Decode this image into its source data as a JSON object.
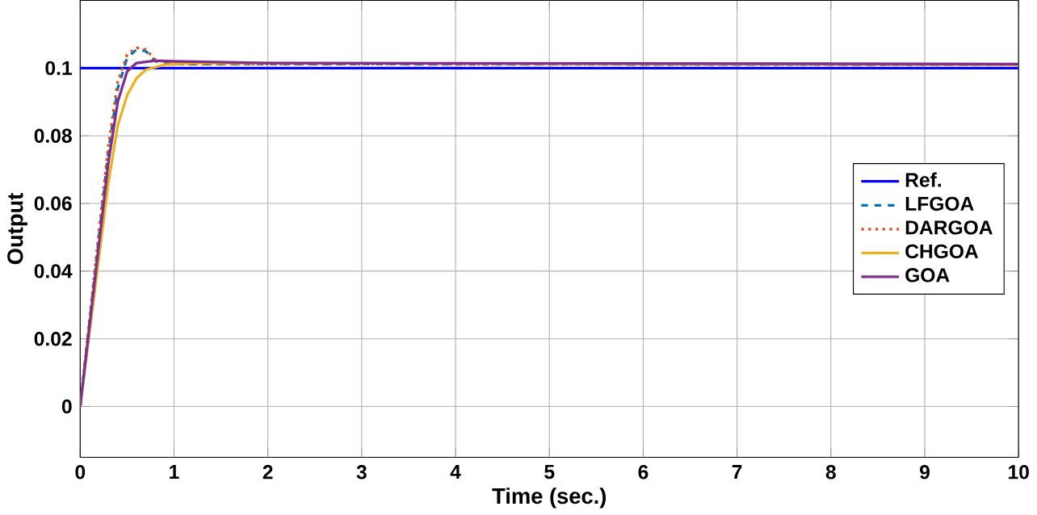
{
  "chart_data": {
    "type": "line",
    "xlabel": "Time (sec.)",
    "ylabel": "Output",
    "xlim": [
      0,
      10
    ],
    "ylim": [
      -0.015,
      0.12
    ],
    "xticks": [
      0,
      1,
      2,
      3,
      4,
      5,
      6,
      7,
      8,
      9,
      10
    ],
    "yticks": [
      0,
      0.02,
      0.04,
      0.06,
      0.08,
      0.1
    ],
    "grid": true,
    "legend": "right",
    "series": [
      {
        "name": "Ref.",
        "color": "#0000ff",
        "line_style": "solid",
        "x": [
          0,
          10
        ],
        "values": [
          0.1,
          0.1
        ]
      },
      {
        "name": "LFGOA",
        "color": "#0072bd",
        "line_style": "dashed",
        "x": [
          0,
          0.1,
          0.2,
          0.3,
          0.4,
          0.5,
          0.6,
          0.7,
          0.8,
          1,
          2,
          10
        ],
        "values": [
          0,
          0.025,
          0.05,
          0.075,
          0.094,
          0.103,
          0.1055,
          0.105,
          0.102,
          0.1012,
          0.1012,
          0.101
        ]
      },
      {
        "name": "DARGOA",
        "color": "#d95319",
        "line_style": "dotted",
        "x": [
          0,
          0.1,
          0.2,
          0.3,
          0.4,
          0.5,
          0.6,
          0.7,
          0.8,
          1,
          2,
          10
        ],
        "values": [
          0,
          0.026,
          0.052,
          0.077,
          0.096,
          0.104,
          0.106,
          0.1055,
          0.1025,
          0.1012,
          0.1012,
          0.101
        ]
      },
      {
        "name": "CHGOA",
        "color": "#edb120",
        "line_style": "solid",
        "x": [
          0,
          0.1,
          0.2,
          0.3,
          0.4,
          0.5,
          0.6,
          0.7,
          0.9,
          1.2,
          10
        ],
        "values": [
          0,
          0.022,
          0.044,
          0.066,
          0.083,
          0.092,
          0.097,
          0.0995,
          0.101,
          0.1015,
          0.101
        ]
      },
      {
        "name": "GOA",
        "color": "#7e2f8e",
        "line_style": "solid",
        "x": [
          0,
          0.1,
          0.2,
          0.3,
          0.4,
          0.5,
          0.6,
          0.8,
          1,
          2,
          10
        ],
        "values": [
          0,
          0.024,
          0.048,
          0.072,
          0.09,
          0.099,
          0.1015,
          0.1022,
          0.102,
          0.1015,
          0.1012
        ]
      }
    ]
  }
}
